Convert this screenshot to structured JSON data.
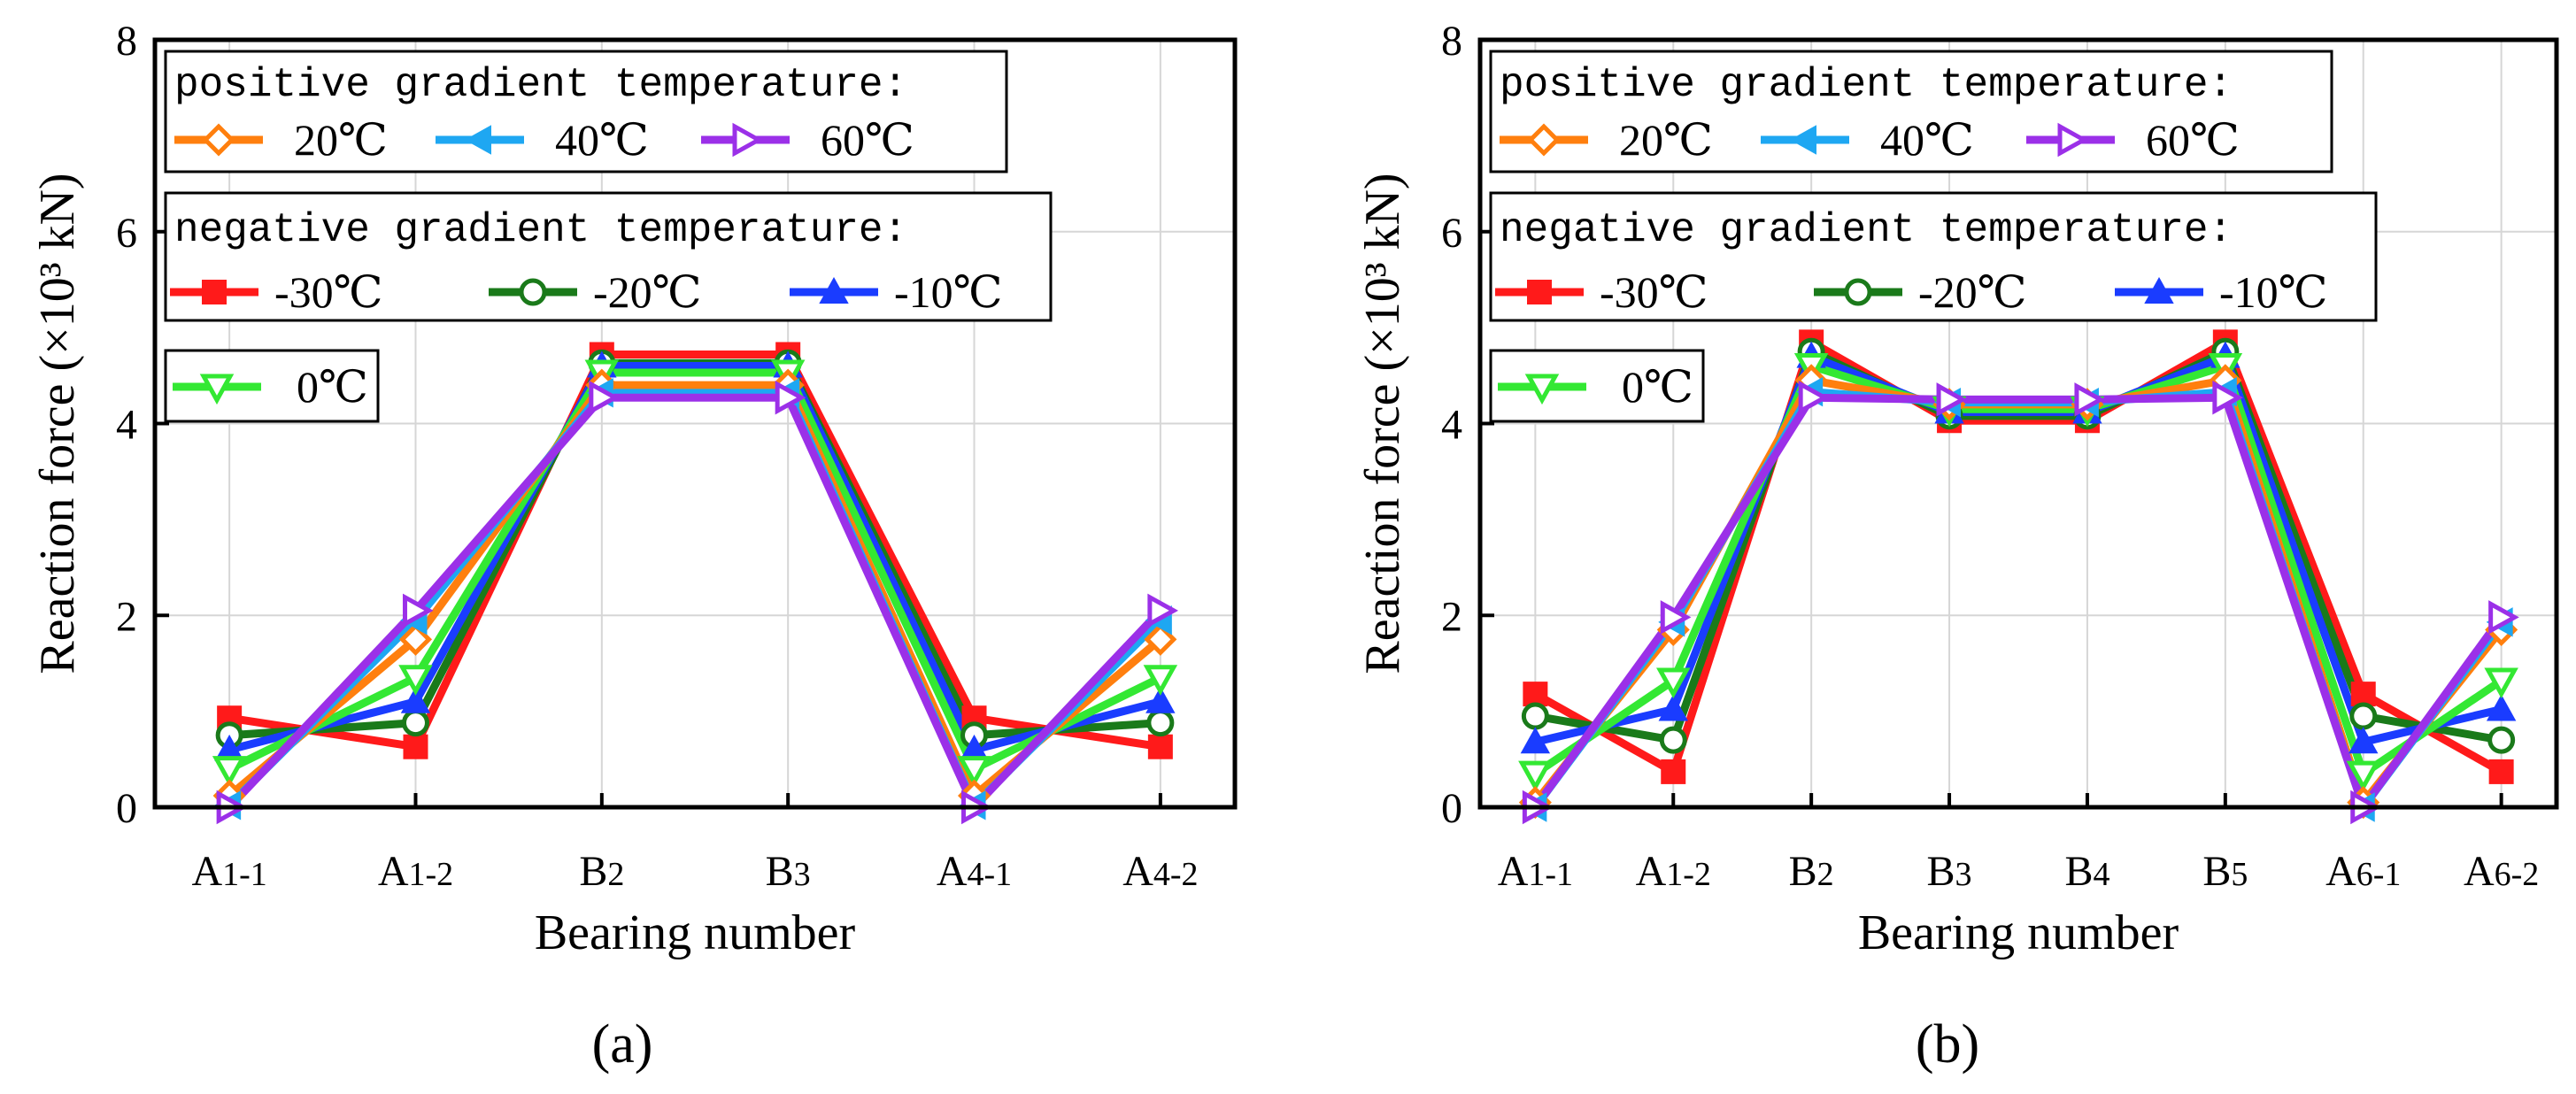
{
  "legend": {
    "positive_header": "positive gradient temperature:",
    "negative_header": "negative gradient temperature:"
  },
  "series_styles": [
    {
      "name": "20℃",
      "group": "positive",
      "color": "#ff7f0e",
      "marker": "diamond-open"
    },
    {
      "name": "40℃",
      "group": "positive",
      "color": "#1ea7f2",
      "marker": "triangle-left-filled"
    },
    {
      "name": "60℃",
      "group": "positive",
      "color": "#9b30e8",
      "marker": "triangle-right-open"
    },
    {
      "name": "-30℃",
      "group": "negative",
      "color": "#ff1a1a",
      "marker": "square-filled"
    },
    {
      "name": "-20℃",
      "group": "negative",
      "color": "#1a7a1a",
      "marker": "circle-open"
    },
    {
      "name": "-10℃",
      "group": "negative",
      "color": "#1a3cff",
      "marker": "triangle-up-filled"
    },
    {
      "name": "0℃",
      "group": "zero",
      "color": "#33e833",
      "marker": "triangle-down-open"
    }
  ],
  "chart_data": [
    {
      "type": "line",
      "panel_label": "(a)",
      "xlabel": "Bearing number",
      "ylabel": "Reaction force",
      "ylabel_unit": "(×10³ kN)",
      "categories": [
        {
          "base": "A",
          "sub": "1-1"
        },
        {
          "base": "A",
          "sub": "1-2"
        },
        {
          "base": "B",
          "sub": "2"
        },
        {
          "base": "B",
          "sub": "3"
        },
        {
          "base": "A",
          "sub": "4-1"
        },
        {
          "base": "A",
          "sub": "4-2"
        }
      ],
      "ylim": [
        0,
        8
      ],
      "yticks": [
        0,
        2,
        4,
        6,
        8
      ],
      "grid": true,
      "series": [
        {
          "name": "-30℃",
          "values": [
            0.93,
            0.63,
            4.72,
            4.72,
            0.93,
            0.63
          ]
        },
        {
          "name": "-20℃",
          "values": [
            0.75,
            0.88,
            4.63,
            4.63,
            0.75,
            0.88
          ]
        },
        {
          "name": "-10℃",
          "values": [
            0.6,
            1.1,
            4.6,
            4.6,
            0.6,
            1.1
          ]
        },
        {
          "name": "0℃",
          "values": [
            0.4,
            1.35,
            4.53,
            4.53,
            0.4,
            1.35
          ]
        },
        {
          "name": "20℃",
          "values": [
            0.12,
            1.75,
            4.4,
            4.4,
            0.12,
            1.75
          ]
        },
        {
          "name": "40℃",
          "values": [
            0.02,
            1.95,
            4.32,
            4.32,
            0.02,
            1.95
          ]
        },
        {
          "name": "60℃",
          "values": [
            0.0,
            2.05,
            4.27,
            4.27,
            0.0,
            2.05
          ]
        }
      ]
    },
    {
      "type": "line",
      "panel_label": "(b)",
      "xlabel": "Bearing number",
      "ylabel": "Reaction force",
      "ylabel_unit": "(×10³ kN)",
      "categories": [
        {
          "base": "A",
          "sub": "1-1"
        },
        {
          "base": "A",
          "sub": "1-2"
        },
        {
          "base": "B",
          "sub": "2"
        },
        {
          "base": "B",
          "sub": "3"
        },
        {
          "base": "B",
          "sub": "4"
        },
        {
          "base": "B",
          "sub": "5"
        },
        {
          "base": "A",
          "sub": "6-1"
        },
        {
          "base": "A",
          "sub": "6-2"
        }
      ],
      "ylim": [
        0,
        8
      ],
      "yticks": [
        0,
        2,
        4,
        6,
        8
      ],
      "grid": true,
      "series": [
        {
          "name": "-30℃",
          "values": [
            1.18,
            0.37,
            4.85,
            4.03,
            4.03,
            4.85,
            1.18,
            0.37
          ]
        },
        {
          "name": "-20℃",
          "values": [
            0.95,
            0.7,
            4.75,
            4.08,
            4.08,
            4.75,
            0.95,
            0.7
          ]
        },
        {
          "name": "-10℃",
          "values": [
            0.68,
            1.02,
            4.7,
            4.12,
            4.12,
            4.7,
            0.68,
            1.02
          ]
        },
        {
          "name": "0℃",
          "values": [
            0.35,
            1.32,
            4.6,
            4.15,
            4.15,
            4.6,
            0.35,
            1.32
          ]
        },
        {
          "name": "20℃",
          "values": [
            0.05,
            1.85,
            4.45,
            4.2,
            4.2,
            4.45,
            0.05,
            1.85
          ]
        },
        {
          "name": "40℃",
          "values": [
            0.0,
            1.93,
            4.33,
            4.22,
            4.22,
            4.33,
            0.0,
            1.93
          ]
        },
        {
          "name": "60℃",
          "values": [
            0.0,
            1.98,
            4.27,
            4.25,
            4.25,
            4.27,
            0.0,
            1.98
          ]
        }
      ]
    }
  ]
}
